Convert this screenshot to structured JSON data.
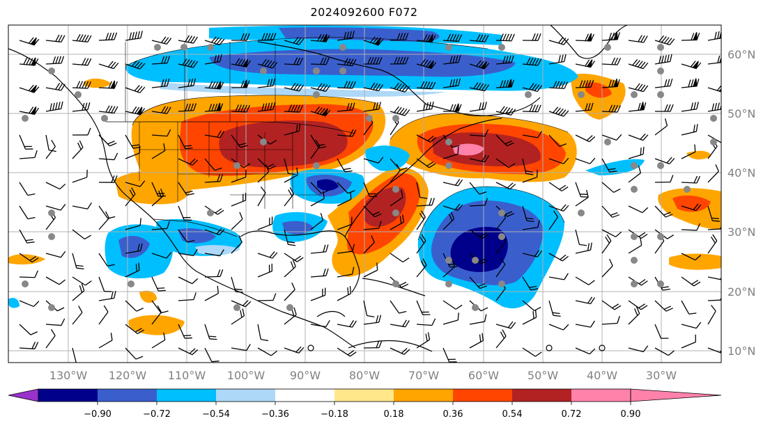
{
  "title": "2024092600 F072",
  "lat_labels": [
    "60°N",
    "50°N",
    "40°N",
    "30°N",
    "20°N",
    "10°N"
  ],
  "lon_labels": [
    "130°W",
    "120°W",
    "110°W",
    "100°W",
    "90°W",
    "80°W",
    "70°W",
    "60°W",
    "50°W",
    "40°W",
    "30°W"
  ],
  "colorbar": {
    "ticks": [
      "−0.90",
      "−0.72",
      "−0.54",
      "−0.36",
      "−0.18",
      "0.18",
      "0.36",
      "0.54",
      "0.72",
      "0.90"
    ],
    "colors": [
      "#9932cc",
      "#00008b",
      "#3a5fcd",
      "#00bfff",
      "#add8f7",
      "#ffffff",
      "#ffe78a",
      "#ffa500",
      "#ff4500",
      "#b22222",
      "#ff82ab"
    ]
  },
  "map": {
    "extent": {
      "lon_min": -137,
      "lon_max": -25,
      "lat_min": 8,
      "lat_max": 65
    },
    "grid": true,
    "label_color": "#808080"
  }
}
